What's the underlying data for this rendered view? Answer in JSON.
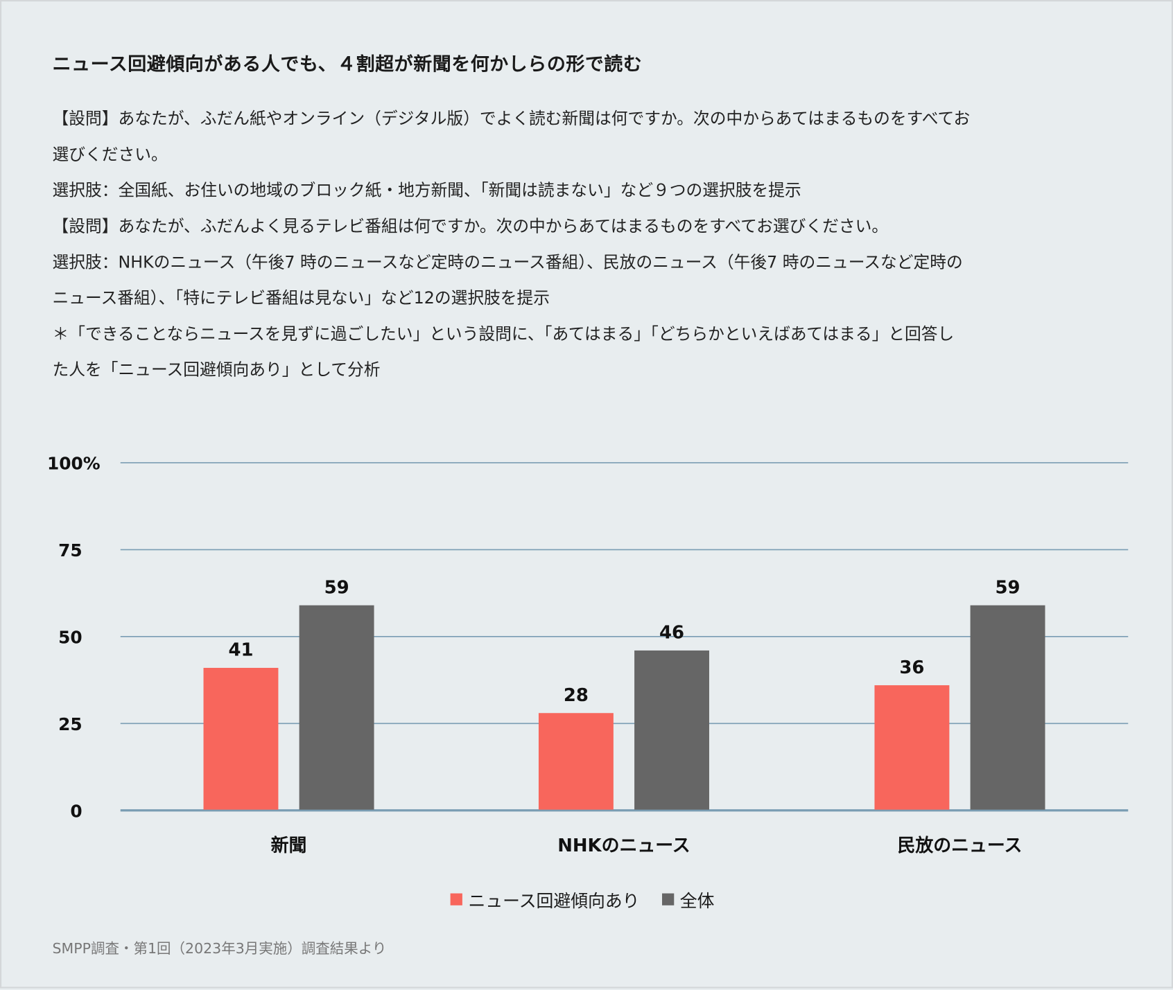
{
  "title": "ニュース回避傾向がある人でも、４割超が新聞を何かしらの形で読む",
  "notes": [
    "【設問】あなたが、ふだん紙やオンライン（デジタル版）でよく読む新聞は何ですか。次の中からあてはまるものをすべてお",
    "選びください。",
    "選択肢：全国紙、お住いの地域のブロック紙・地方新聞、「新聞は読まない」など９つの選択肢を提示",
    "【設問】あなたが、ふだんよく見るテレビ番組は何ですか。次の中からあてはまるものをすべてお選びください。",
    "選択肢：NHKのニュース（午後7 時のニュースなど定時のニュース番組）、民放のニュース（午後7 時のニュースなど定時の",
    "ニュース番組）、「特にテレビ番組は見ない」など12の選択肢を提示",
    "＊「できることならニュースを見ずに過ごしたい」という設問に、「あてはまる」「どちらかといえばあてはまる」と回答し",
    "た人を「ニュース回避傾向あり」として分析"
  ],
  "footer": "SMPP調査・第1回（2023年3月実施）調査結果より",
  "chart_data": {
    "type": "bar",
    "categories": [
      "新聞",
      "NHKのニュース",
      "民放のニュース"
    ],
    "series": [
      {
        "name": "ニュース回避傾向あり",
        "values": [
          41,
          28,
          36
        ],
        "color": "#f8665c"
      },
      {
        "name": "全体",
        "values": [
          59,
          46,
          59
        ],
        "color": "#666666"
      }
    ],
    "yticks": [
      "0",
      "25",
      "50",
      "75",
      "100%"
    ],
    "ytick_values": [
      0,
      25,
      50,
      75,
      100
    ],
    "ylim": [
      0,
      100
    ],
    "grid": true,
    "gridColor": "#7a9db3",
    "legend": "bottom-center"
  }
}
